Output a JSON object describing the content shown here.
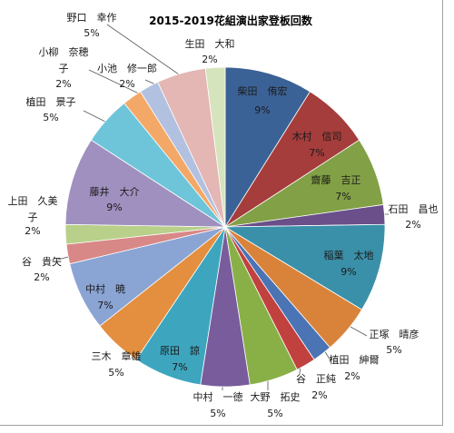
{
  "chart_data": {
    "type": "pie",
    "title": "2015-2019花組演出家登板回数",
    "slices": [
      {
        "name": "柴田　侑宏",
        "value": 9,
        "label": "9%",
        "color": "#3b6296"
      },
      {
        "name": "木村　信司",
        "value": 7,
        "label": "7%",
        "color": "#a43d3b"
      },
      {
        "name": "齋藤　吉正",
        "value": 7,
        "label": "7%",
        "color": "#82a046"
      },
      {
        "name": "石田　昌也",
        "value": 2,
        "label": "2%",
        "color": "#6a4f8a"
      },
      {
        "name": "稲葉　太地",
        "value": 9,
        "label": "9%",
        "color": "#3a90a9"
      },
      {
        "name": "正塚　晴彦",
        "value": 5,
        "label": "5%",
        "color": "#d9833a"
      },
      {
        "name": "植田　紳爾",
        "value": 2,
        "label": "2%",
        "color": "#4b74b5"
      },
      {
        "name": "谷　正純",
        "value": 2,
        "label": "2%",
        "color": "#c0413e"
      },
      {
        "name": "大野　拓史",
        "value": 5,
        "label": "5%",
        "color": "#89b046"
      },
      {
        "name": "中村　一徳",
        "value": 5,
        "label": "5%",
        "color": "#785c9c"
      },
      {
        "name": "原田　諒",
        "value": 7,
        "label": "7%",
        "color": "#3da6be"
      },
      {
        "name": "三木　章雄",
        "value": 5,
        "label": "5%",
        "color": "#e38f3f"
      },
      {
        "name": "中村　暁",
        "value": 7,
        "label": "7%",
        "color": "#8aa4d4"
      },
      {
        "name": "谷　貴矢",
        "value": 2,
        "label": "2%",
        "color": "#d88886"
      },
      {
        "name": "上田　久美子",
        "value": 2,
        "label": "2%",
        "color": "#b8d08a"
      },
      {
        "name": "藤井　大介",
        "value": 9,
        "label": "9%",
        "color": "#a090bf"
      },
      {
        "name": "植田　景子",
        "value": 5,
        "label": "5%",
        "color": "#6ec5d9"
      },
      {
        "name": "小柳　奈穂子",
        "value": 2,
        "label": "2%",
        "color": "#f3a868"
      },
      {
        "name": "小池　修一郎",
        "value": 2,
        "label": "2%",
        "color": "#b2c1e0"
      },
      {
        "name": "野口　幸作",
        "value": 5,
        "label": "5%",
        "color": "#e4b6b4"
      },
      {
        "name": "生田　大和",
        "value": 2,
        "label": "2%",
        "color": "#d5e4bd"
      }
    ]
  }
}
